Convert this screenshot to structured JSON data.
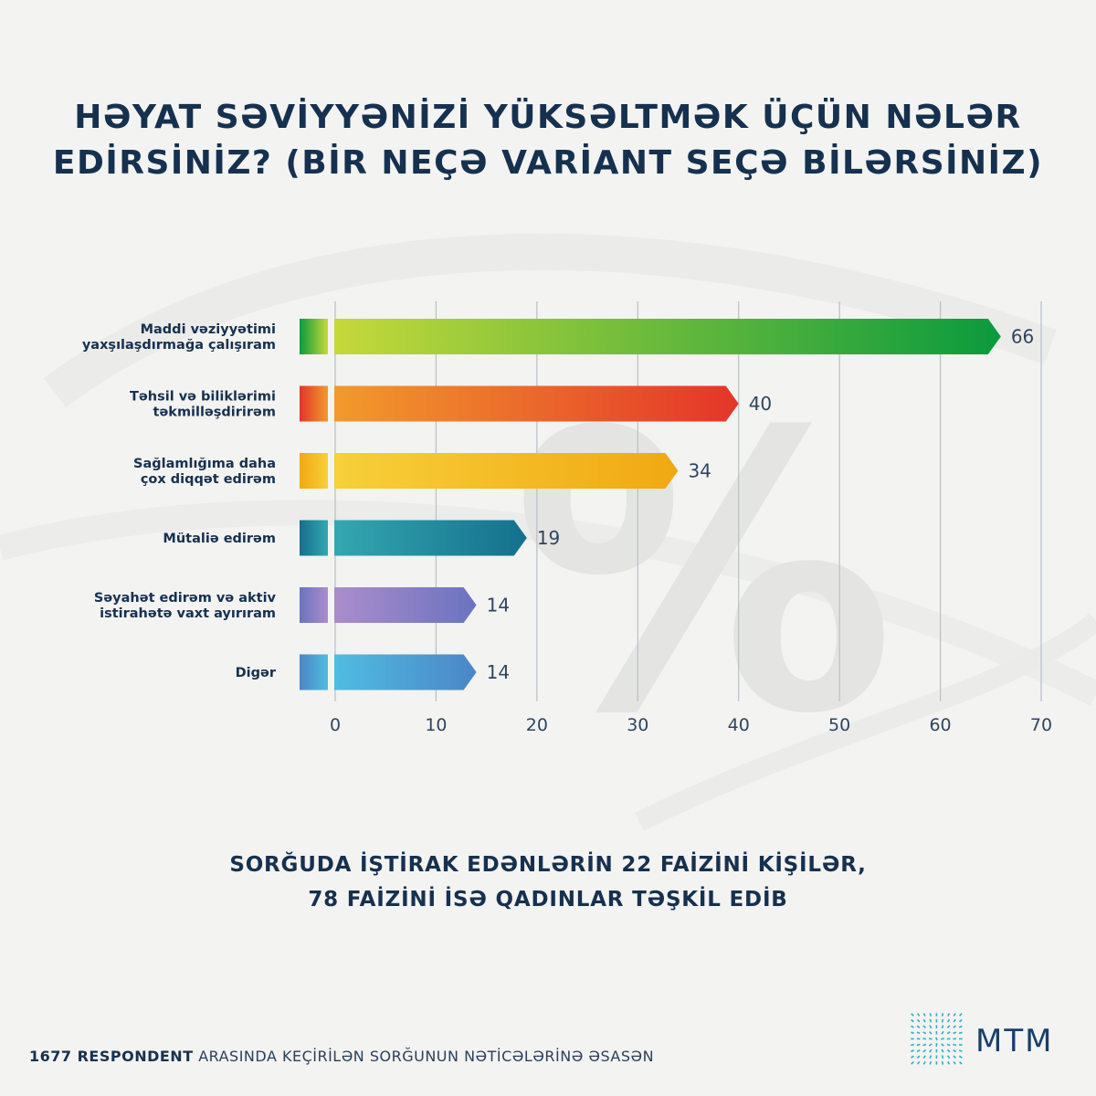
{
  "title_lines": [
    "HƏYAT SƏVİYYƏNİZİ YÜKSƏLTMƏK ÜÇÜN NƏLƏR",
    "EDİRSİNİZ? (BİR NEÇƏ VARİANT SEÇƏ BİLƏRSİNİZ)"
  ],
  "watermark_symbol": "%",
  "chart_data": {
    "type": "bar",
    "orientation": "horizontal",
    "title": "HƏYAT SƏVİYYƏNİZİ YÜKSƏLTMƏK ÜÇÜN NƏLƏR EDİRSİNİZ? (BİR NEÇƏ VARİANT SEÇƏ BİLƏRSİNİZ)",
    "categories": [
      [
        "Maddi vəziyyətimi",
        "yaxşılaşdırmağa çalışıram"
      ],
      [
        "Təhsil və biliklərimi",
        "təkmilləşdirirəm"
      ],
      [
        "Sağlamlığıma daha",
        "çox diqqət edirəm"
      ],
      [
        "Mütaliə edirəm"
      ],
      [
        "Səyahət edirəm və aktiv",
        "istirahətə vaxt ayırıram"
      ],
      [
        "Digər"
      ]
    ],
    "values": [
      66,
      40,
      34,
      19,
      14,
      14
    ],
    "xlim": [
      0,
      70
    ],
    "xticks": [
      0,
      10,
      20,
      30,
      40,
      50,
      60,
      70
    ],
    "grid": true,
    "colors": [
      [
        "#c5d83a",
        "#0a9a3e"
      ],
      [
        "#f19a2c",
        "#e4352a"
      ],
      [
        "#f7d03a",
        "#f0a812"
      ],
      [
        "#34a7b0",
        "#14708d"
      ],
      [
        "#ab8dcb",
        "#6a73bf"
      ],
      [
        "#4fbde0",
        "#4c85c7"
      ]
    ]
  },
  "subtitle_lines": [
    "SORĞUDA İŞTİRAK EDƏNLƏRİN 22 FAİZİNİ KİŞİLƏR,",
    "78 FAİZİNİ İSƏ QADINLAR TƏŞKİL EDİB"
  ],
  "footer": {
    "bold": "1677 RESPONDENT",
    "rest": " ARASINDA KEÇİRİLƏN SORĞUNUN NƏTİCƏLƏRİNƏ ƏSASƏN"
  },
  "logo": {
    "text": "MTM",
    "color": "#17406a",
    "mark_color": "#2ab0c8"
  }
}
